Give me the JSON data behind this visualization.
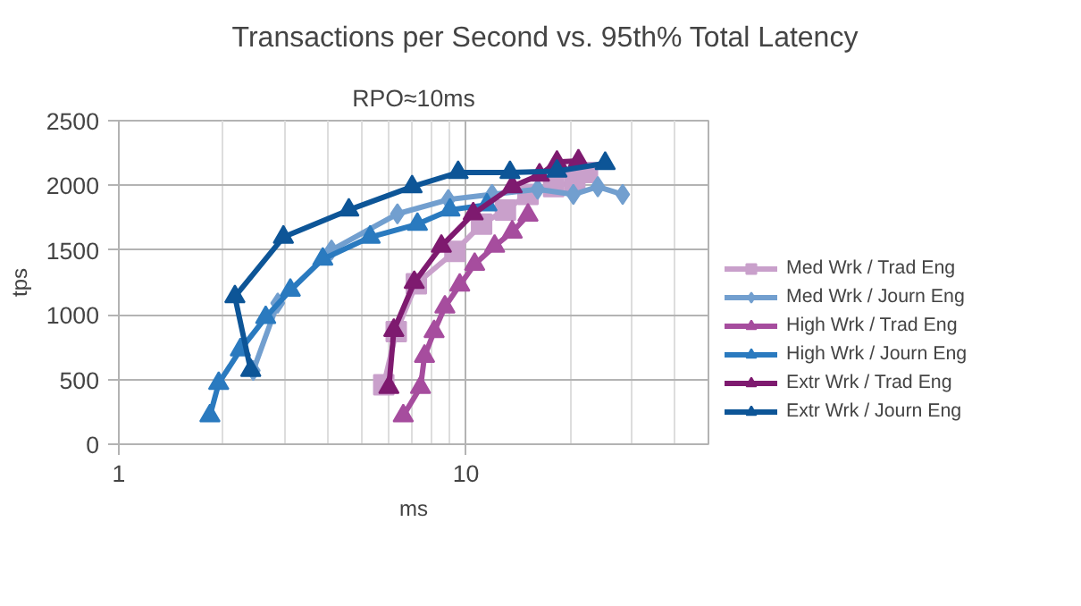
{
  "chart_data": {
    "type": "line",
    "title": "Transactions per Second vs. 95th% Total Latency",
    "subtitle": "RPO≈10ms",
    "xlabel": "ms",
    "ylabel": "tps",
    "log": "x",
    "xlim": [
      1,
      50
    ],
    "xticks": [
      1,
      10
    ],
    "ylim": [
      0,
      2500
    ],
    "yticks": [
      0,
      500,
      1000,
      1500,
      2000,
      2500
    ],
    "grid": true,
    "legend": "right",
    "series": [
      {
        "name": "Med Wrk / Trad Eng",
        "color": "#c9a0cb",
        "marker": "square",
        "x": [
          5.8,
          6.3,
          7.2,
          9.3,
          11.1,
          13.0,
          15.1,
          17.9,
          20.6,
          22.4
        ],
        "values": [
          460,
          870,
          1240,
          1490,
          1700,
          1810,
          1930,
          1990,
          2030,
          2100
        ]
      },
      {
        "name": "Med Wrk / Journ Eng",
        "color": "#729fcf",
        "marker": "diamond",
        "x": [
          2.44,
          2.87,
          4.1,
          6.35,
          8.9,
          11.9,
          16.1,
          20.4,
          24.0,
          28.3
        ],
        "values": [
          570,
          1090,
          1500,
          1780,
          1890,
          1930,
          1970,
          1930,
          1990,
          1930
        ]
      },
      {
        "name": "High Wrk / Trad Eng",
        "color": "#a64d9e",
        "marker": "triangle",
        "x": [
          6.6,
          7.4,
          7.6,
          8.1,
          8.7,
          9.6,
          10.6,
          12.1,
          13.6,
          15.1
        ],
        "values": [
          220,
          440,
          680,
          870,
          1060,
          1230,
          1390,
          1530,
          1640,
          1770
        ]
      },
      {
        "name": "High Wrk / Journ Eng",
        "color": "#2a7abf",
        "marker": "triangle",
        "x": [
          1.83,
          1.94,
          2.24,
          2.65,
          3.12,
          3.87,
          5.3,
          7.25,
          9.0,
          11.5
        ],
        "values": [
          220,
          470,
          730,
          980,
          1190,
          1430,
          1600,
          1700,
          1810,
          1850
        ]
      },
      {
        "name": "Extr Wrk / Trad Eng",
        "color": "#7e1a6f",
        "marker": "triangle",
        "x": [
          6.0,
          6.2,
          7.1,
          8.5,
          10.5,
          13.6,
          16.3,
          18.3,
          21.1
        ],
        "values": [
          440,
          880,
          1250,
          1530,
          1780,
          1990,
          2080,
          2180,
          2190
        ]
      },
      {
        "name": "Extr Wrk / Journ Eng",
        "color": "#0d5597",
        "marker": "triangle",
        "x": [
          2.4,
          2.16,
          2.98,
          4.6,
          7.0,
          9.5,
          13.4,
          18.3,
          25.2
        ],
        "values": [
          570,
          1140,
          1600,
          1810,
          1990,
          2100,
          2100,
          2110,
          2170
        ]
      }
    ]
  }
}
